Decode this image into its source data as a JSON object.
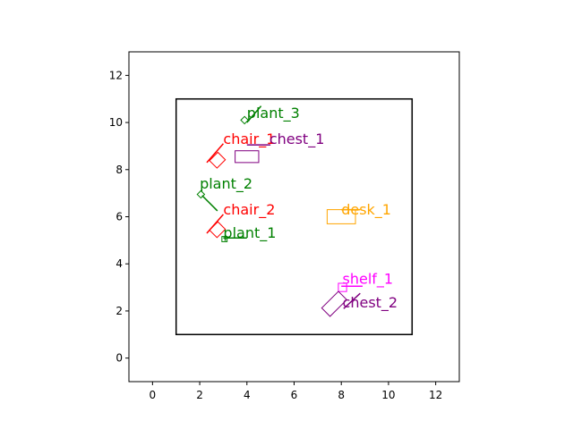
{
  "chart_data": {
    "type": "scatter",
    "title": "",
    "xlabel": "",
    "ylabel": "",
    "xlim": [
      -1,
      13
    ],
    "ylim": [
      -1,
      13
    ],
    "xticks": [
      0,
      2,
      4,
      6,
      8,
      10,
      12
    ],
    "yticks": [
      0,
      2,
      4,
      6,
      8,
      10,
      12
    ],
    "grid": false,
    "room": {
      "x0": 1,
      "y0": 1,
      "x1": 11,
      "y1": 11,
      "color": "#000000"
    },
    "objects": [
      {
        "name": "plant_3",
        "color": "#008000",
        "rect": {
          "cx": 3.9,
          "cy": 10.1,
          "w": 0.22,
          "h": 0.22,
          "angle": 45
        },
        "line": [
          [
            4.0,
            10.0
          ],
          [
            4.6,
            10.7
          ]
        ],
        "label": [
          4.0,
          10.2
        ]
      },
      {
        "name": "chair_1",
        "color": "#ff0000",
        "rect": {
          "cx": 2.75,
          "cy": 8.4,
          "w": 0.5,
          "h": 0.45,
          "angle": 45
        },
        "line": [
          [
            2.3,
            8.3
          ],
          [
            3.0,
            9.1
          ]
        ],
        "label": [
          3.0,
          9.1
        ]
      },
      {
        "name": "chest_1",
        "color": "#800080",
        "rect": {
          "cx": 4.0,
          "cy": 8.55,
          "w": 1.0,
          "h": 0.5,
          "angle": 0
        },
        "line": [
          [
            4.0,
            9.05
          ],
          [
            5.0,
            9.05
          ]
        ],
        "label": [
          4.95,
          9.1
        ]
      },
      {
        "name": "plant_2",
        "color": "#008000",
        "rect": {
          "cx": 2.05,
          "cy": 6.95,
          "w": 0.22,
          "h": 0.22,
          "angle": 45
        },
        "line": [
          [
            2.1,
            6.9
          ],
          [
            2.75,
            6.25
          ]
        ],
        "label": [
          2.0,
          7.2
        ]
      },
      {
        "name": "chair_2",
        "color": "#ff0000",
        "rect": {
          "cx": 2.75,
          "cy": 5.45,
          "w": 0.5,
          "h": 0.45,
          "angle": 45
        },
        "line": [
          [
            2.3,
            5.3
          ],
          [
            3.0,
            6.1
          ]
        ],
        "label": [
          3.0,
          6.1
        ]
      },
      {
        "name": "plant_1",
        "color": "#008000",
        "rect": {
          "cx": 3.05,
          "cy": 5.05,
          "w": 0.22,
          "h": 0.22,
          "angle": 0
        },
        "line": [
          [
            3.0,
            5.1
          ],
          [
            4.0,
            5.1
          ]
        ],
        "label": [
          3.0,
          5.1
        ]
      },
      {
        "name": "desk_1",
        "color": "#ffa500",
        "rect": {
          "cx": 8.0,
          "cy": 6.0,
          "w": 1.2,
          "h": 0.6,
          "angle": 0
        },
        "line": [
          [
            8.0,
            6.3
          ],
          [
            8.8,
            6.3
          ]
        ],
        "label": [
          8.0,
          6.1
        ]
      },
      {
        "name": "shelf_1",
        "color": "#ff00ff",
        "rect": {
          "cx": 8.05,
          "cy": 3.0,
          "w": 0.35,
          "h": 0.35,
          "angle": 0
        },
        "line": [
          [
            8.0,
            3.05
          ],
          [
            8.9,
            3.05
          ]
        ],
        "label": [
          8.05,
          3.15
        ]
      },
      {
        "name": "chest_2",
        "color": "#800080",
        "rect": {
          "cx": 7.7,
          "cy": 2.3,
          "w": 1.0,
          "h": 0.5,
          "angle": 45
        },
        "line": [
          [
            8.1,
            2.1
          ],
          [
            8.8,
            2.75
          ]
        ],
        "label": [
          8.05,
          2.15
        ]
      }
    ]
  }
}
